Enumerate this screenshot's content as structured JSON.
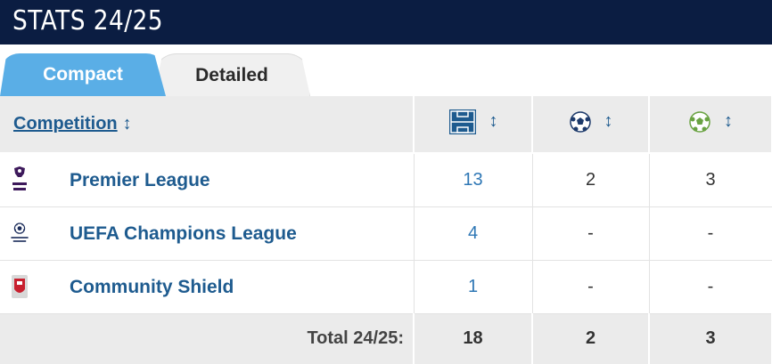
{
  "title": "STATS 24/25",
  "tabs": [
    {
      "label": "Compact",
      "active": true
    },
    {
      "label": "Detailed",
      "active": false
    }
  ],
  "table": {
    "header": {
      "competition": "Competition",
      "icons": [
        "appearances-pitch-icon",
        "goals-ball-icon",
        "assists-ball-icon"
      ]
    },
    "rows": [
      {
        "competition": "Premier League",
        "logo": "premier-league-logo",
        "appearances": "13",
        "goals": "2",
        "assists": "3"
      },
      {
        "competition": "UEFA Champions League",
        "logo": "champions-league-logo",
        "appearances": "4",
        "goals": "-",
        "assists": "-"
      },
      {
        "competition": "Community Shield",
        "logo": "community-shield-logo",
        "appearances": "1",
        "goals": "-",
        "assists": "-"
      }
    ],
    "total": {
      "label": "Total 24/25:",
      "appearances": "18",
      "goals": "2",
      "assists": "3"
    }
  },
  "colors": {
    "title_bg": "#0b1d42",
    "active_tab": "#5aaee6",
    "link": "#1e5b8f",
    "header_bg": "#ebebeb"
  }
}
